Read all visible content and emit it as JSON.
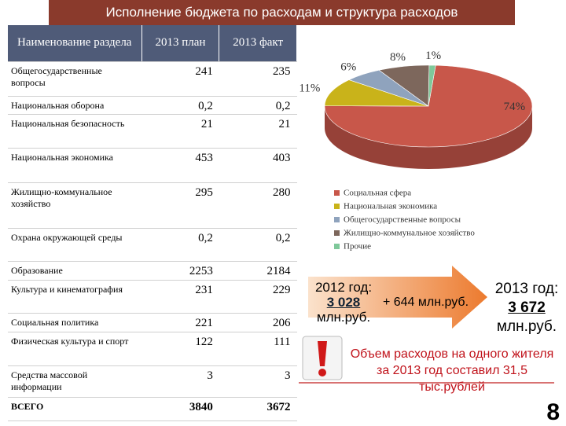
{
  "header": {
    "title": "Исполнение бюджета по расходам и структура расходов"
  },
  "table": {
    "columns": [
      "Наименование раздела",
      "2013 план",
      "2013 факт"
    ],
    "rows": [
      [
        "Общегосударственные вопросы",
        "241",
        "235"
      ],
      [
        "Национальная оборона",
        "0,2",
        "0,2"
      ],
      [
        "Национальная безопасность",
        "21",
        "21"
      ],
      [
        "Национальная экономика",
        "453",
        "403"
      ],
      [
        "Жилищно-коммунальное хозяйство",
        "295",
        "280"
      ],
      [
        "Охрана окружающей среды",
        "0,2",
        "0,2"
      ],
      [
        "Образование",
        "2253",
        "2184"
      ],
      [
        "Культура и кинематография",
        "231",
        "229"
      ],
      [
        "Социальная политика",
        "221",
        "206"
      ],
      [
        "Физическая культура и спорт",
        "122",
        "111"
      ],
      [
        "Средства массовой информации",
        "3",
        "3"
      ],
      [
        "ВСЕГО",
        "3840",
        "3672"
      ]
    ]
  },
  "chart_data": {
    "type": "pie",
    "categories": [
      "Социальная сфера",
      "Национальная экономика",
      "Общегосударственные вопросы",
      "Жилищно-коммунальное хозяйство",
      "Прочие"
    ],
    "values": [
      74,
      11,
      6,
      8,
      1
    ],
    "value_labels": [
      "74%",
      "11%",
      "6%",
      "8%",
      "1%"
    ],
    "colors": [
      "#c8574a",
      "#c9b31a",
      "#8fa3bd",
      "#7d675c",
      "#7fc89a"
    ]
  },
  "comparison": {
    "left_label": "2012 год:",
    "left_value": "3 028",
    "left_unit": "млн.руб.",
    "delta": "+ 644 млн.руб.",
    "right_label": "2013 год:",
    "right_value": "3 672",
    "right_unit": "млн.руб."
  },
  "note": "Объем расходов на одного жителя за 2013 год составил 31,5 тыс.рублей",
  "page_number": "8"
}
